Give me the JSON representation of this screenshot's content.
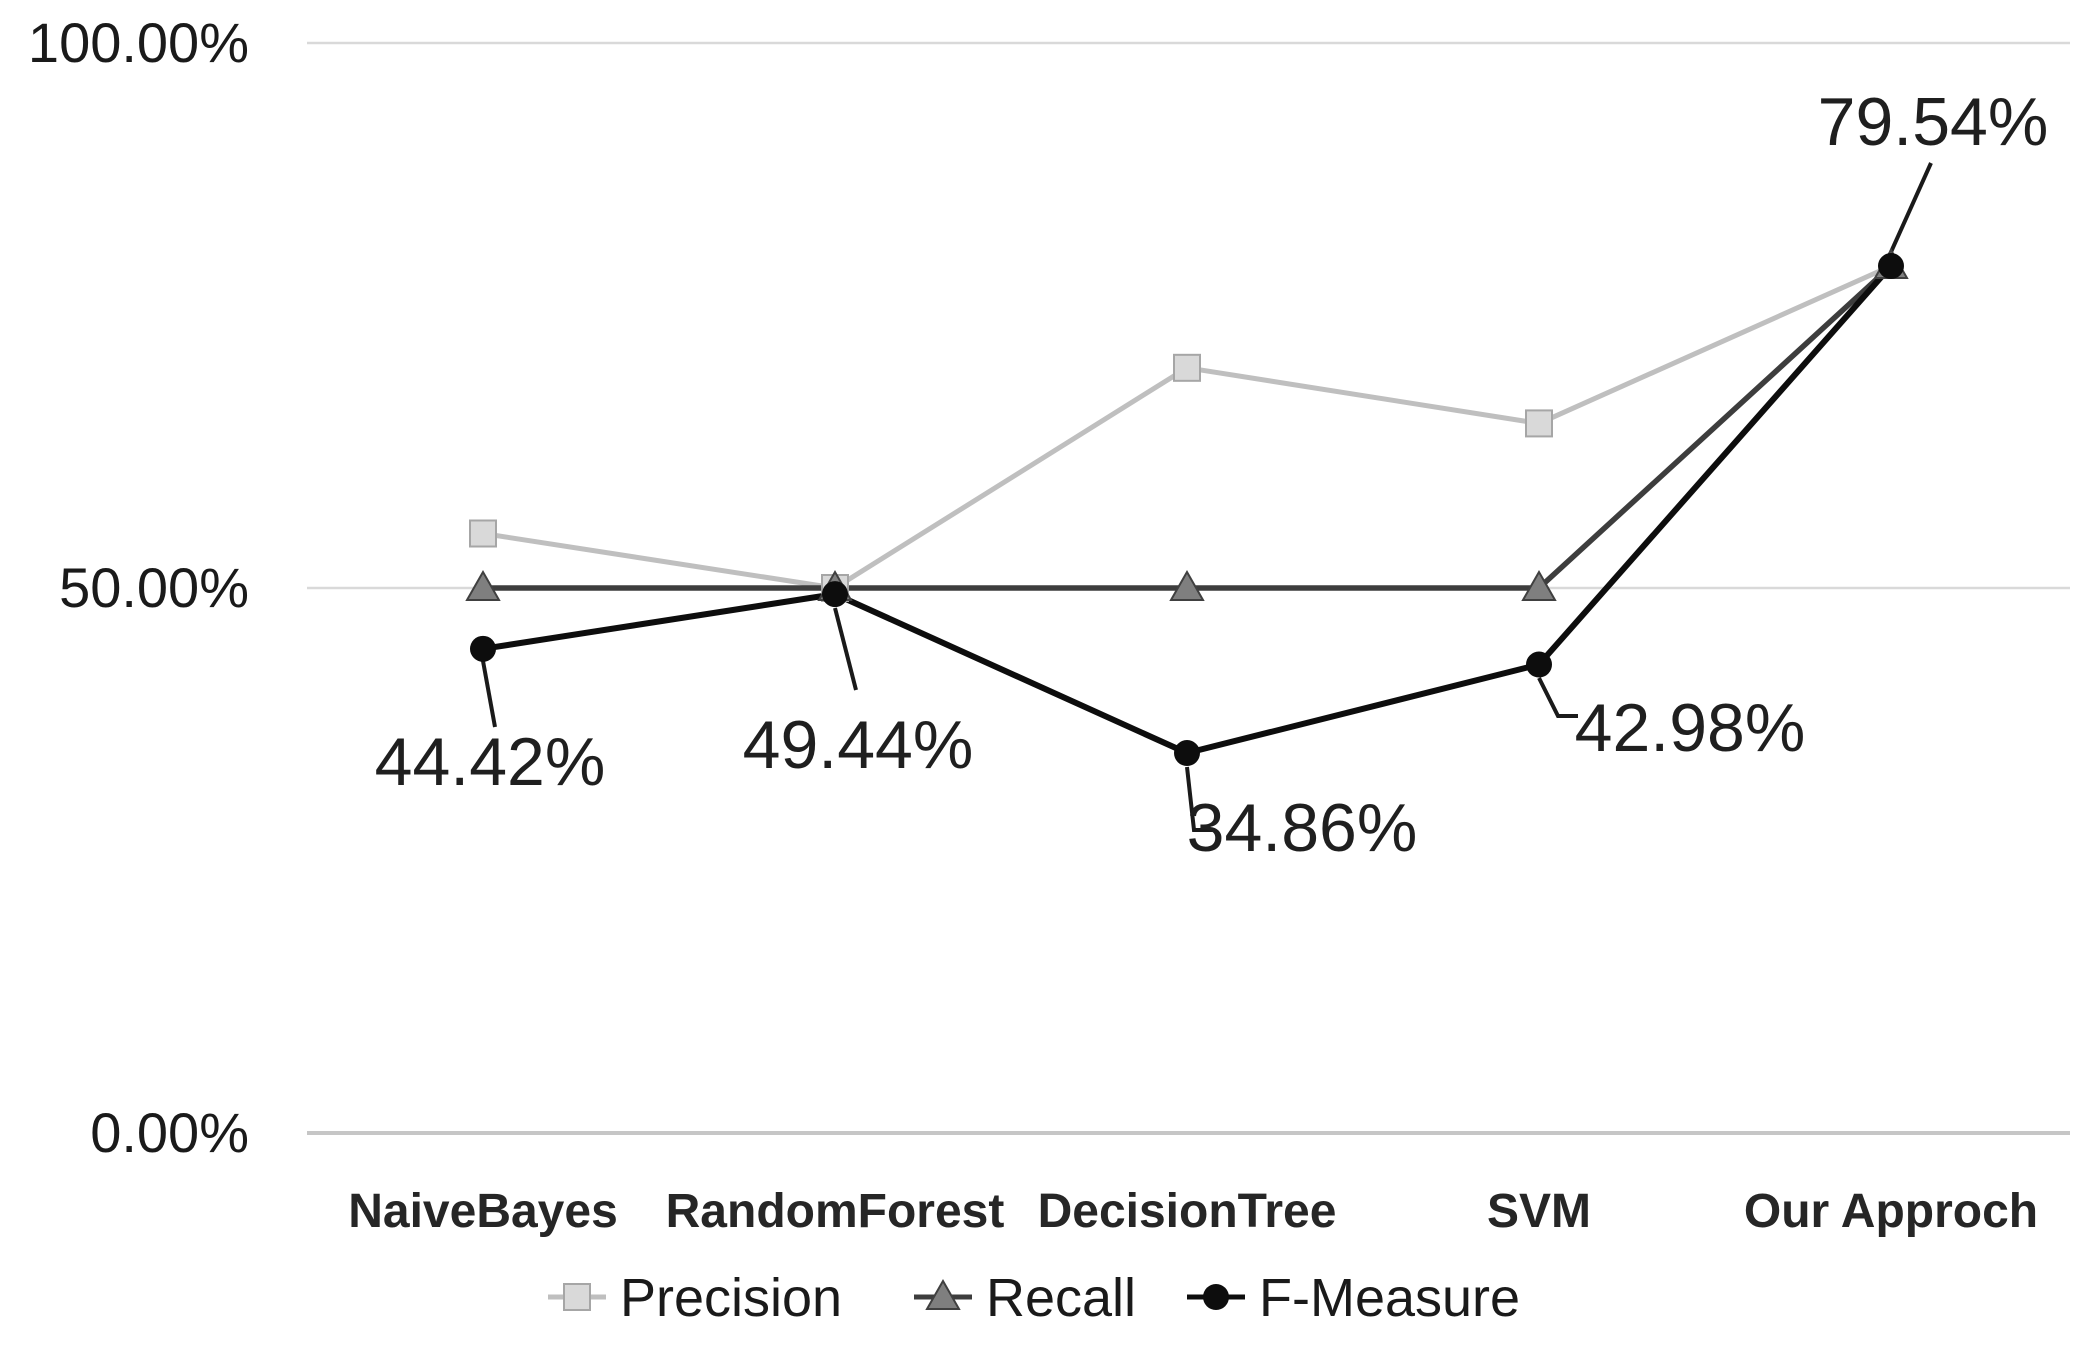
{
  "chart_data": {
    "type": "line",
    "title": "",
    "xlabel": "",
    "ylabel": "",
    "ylim": [
      0,
      100
    ],
    "grid": true,
    "legend_position": "bottom",
    "background_color": "#ffffff",
    "gridline_color": "#d9d9d9",
    "axis_line_color": "#c6c6c6",
    "text_color": "#1a1a1a",
    "categories": [
      "NaiveBayes",
      "RandomForest",
      "DecisionTree",
      "SVM",
      "Our Approch"
    ],
    "yticks": [
      {
        "value": 0,
        "label": "0.00%"
      },
      {
        "value": 50,
        "label": "50.00%"
      },
      {
        "value": 100,
        "label": "100.00%"
      }
    ],
    "series": [
      {
        "name": "Precision",
        "marker": "square",
        "line_color": "#bfbfbf",
        "marker_fill": "#d9d9d9",
        "marker_stroke": "#a6a6a6",
        "values": [
          55.0,
          50.0,
          70.2,
          65.1,
          79.54
        ],
        "data_labels": []
      },
      {
        "name": "Recall",
        "marker": "triangle",
        "line_color": "#3d3d3d",
        "marker_fill": "#7f7f7f",
        "marker_stroke": "#404040",
        "values": [
          50.0,
          50.0,
          50.0,
          50.0,
          79.54
        ],
        "data_labels": []
      },
      {
        "name": "F-Measure",
        "marker": "circle",
        "line_color": "#0d0d0d",
        "marker_fill": "#0d0d0d",
        "marker_stroke": "#0d0d0d",
        "values": [
          44.42,
          49.44,
          34.86,
          42.98,
          79.54
        ],
        "data_labels": [
          "44.42%",
          "49.44%",
          "34.86%",
          "42.98%",
          "79.54%"
        ]
      }
    ],
    "legend": [
      "Precision",
      "Recall",
      "F-Measure"
    ]
  }
}
